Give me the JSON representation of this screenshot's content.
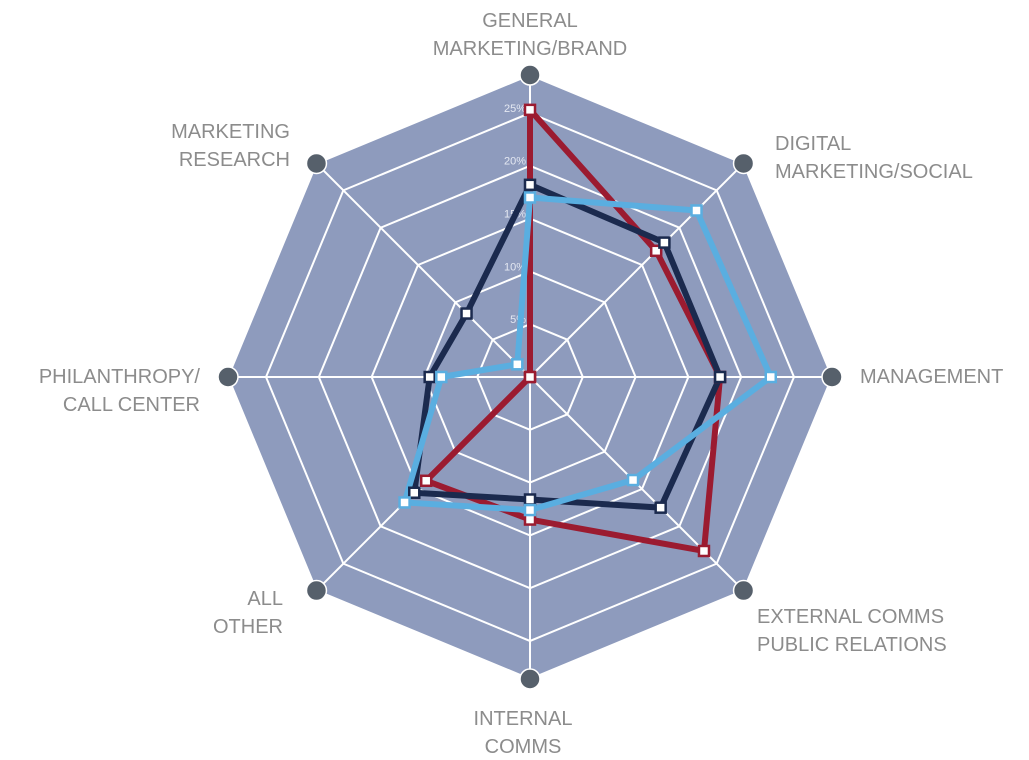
{
  "chart_data": {
    "type": "radar",
    "categories": [
      [
        "GENERAL",
        "MARKETING/BRAND"
      ],
      [
        "DIGITAL",
        "MARKETING/SOCIAL"
      ],
      [
        "MANAGEMENT"
      ],
      [
        "EXTERNAL COMMS",
        "PUBLIC RELATIONS"
      ],
      [
        "INTERNAL",
        "COMMS"
      ],
      [
        "ALL",
        "OTHER"
      ],
      [
        "PHILANTHROPY/",
        "CALL CENTER"
      ],
      [
        "MARKETING",
        "RESEARCH"
      ]
    ],
    "series": [
      {
        "color": "#9b1b30",
        "values": [
          25.3,
          16.9,
          18,
          23.3,
          13.5,
          13.9,
          0,
          0
        ]
      },
      {
        "color": "#1b2a4e",
        "values": [
          18.2,
          18,
          18,
          17.5,
          11.6,
          15.5,
          9.5,
          8.5
        ]
      },
      {
        "color": "#5aaee0",
        "values": [
          17,
          22.3,
          22.8,
          13.8,
          12.6,
          16.8,
          8.4,
          1.7
        ]
      }
    ],
    "ylim": [
      0,
      28.6
    ],
    "yticks": [
      {
        "value": 5,
        "label": "5%"
      },
      {
        "value": 10,
        "label": "10%"
      },
      {
        "value": 15,
        "label": "15%"
      },
      {
        "value": 20,
        "label": "20%"
      },
      {
        "value": 25,
        "label": "25%"
      }
    ],
    "fill_color": "#8e9bbd",
    "axis_dot_color": "#56606b",
    "grid": true
  }
}
